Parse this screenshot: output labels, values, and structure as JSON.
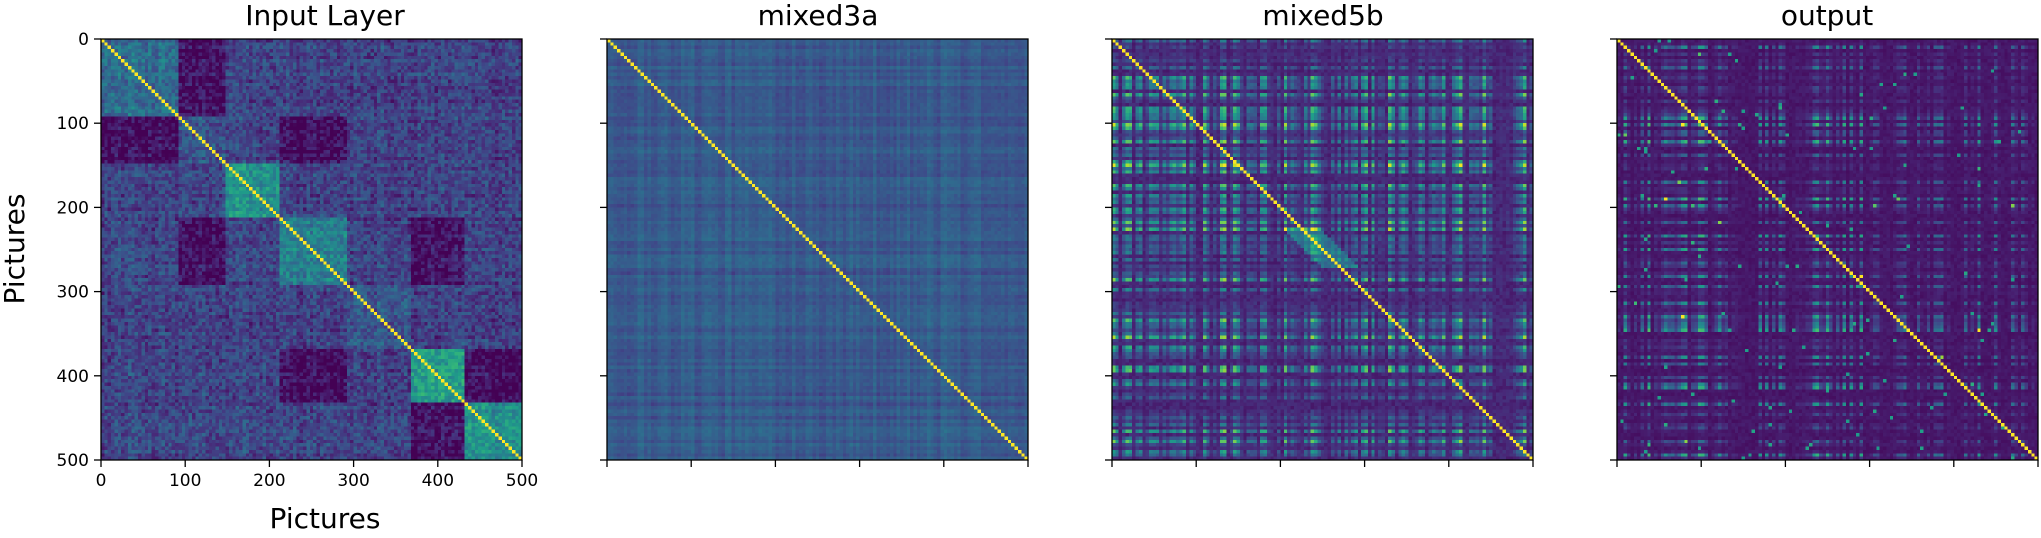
{
  "chart_data": [
    {
      "type": "heatmap",
      "title": "Input Layer",
      "xlabel": "Pictures",
      "ylabel": "Pictures",
      "xlim": [
        0,
        500
      ],
      "ylim": [
        0,
        500
      ],
      "xticks": [
        0,
        100,
        200,
        300,
        400,
        500
      ],
      "yticks": [
        0,
        100,
        200,
        300,
        400,
        500
      ],
      "xtick_labels": [
        "0",
        "100",
        "200",
        "300",
        "400",
        "500"
      ],
      "ytick_labels": [
        "0",
        "100",
        "200",
        "300",
        "400",
        "500"
      ],
      "colormap": "viridis",
      "diagonal_value": 1.0,
      "blocks": [
        {
          "from": 0,
          "to": 90,
          "level": 0.35
        },
        {
          "from": 90,
          "to": 145,
          "level": 0.25
        },
        {
          "from": 145,
          "to": 210,
          "level": 0.5
        },
        {
          "from": 210,
          "to": 290,
          "level": 0.42
        },
        {
          "from": 290,
          "to": 365,
          "level": 0.28
        },
        {
          "from": 365,
          "to": 432,
          "level": 0.55
        },
        {
          "from": 432,
          "to": 500,
          "level": 0.5
        }
      ],
      "dark_blocks": [
        {
          "rows": [
            0,
            90
          ],
          "cols": [
            90,
            145
          ]
        },
        {
          "rows": [
            90,
            145
          ],
          "cols": [
            0,
            90
          ]
        },
        {
          "rows": [
            90,
            145
          ],
          "cols": [
            210,
            290
          ]
        },
        {
          "rows": [
            210,
            290
          ],
          "cols": [
            90,
            145
          ]
        },
        {
          "rows": [
            210,
            290
          ],
          "cols": [
            365,
            432
          ]
        },
        {
          "rows": [
            365,
            432
          ],
          "cols": [
            210,
            290
          ]
        },
        {
          "rows": [
            365,
            432
          ],
          "cols": [
            432,
            500
          ]
        },
        {
          "rows": [
            432,
            500
          ],
          "cols": [
            365,
            432
          ]
        }
      ]
    },
    {
      "type": "heatmap",
      "title": "mixed3a",
      "xlim": [
        0,
        500
      ],
      "ylim": [
        0,
        500
      ],
      "xticks": [
        0,
        100,
        200,
        300,
        400,
        500
      ],
      "yticks": [
        0,
        100,
        200,
        300,
        400,
        500
      ],
      "colormap": "viridis",
      "diagonal_value": 1.0,
      "base_level": 0.28
    },
    {
      "type": "heatmap",
      "title": "mixed5b",
      "xlim": [
        0,
        500
      ],
      "ylim": [
        0,
        500
      ],
      "xticks": [
        0,
        100,
        200,
        300,
        400,
        500
      ],
      "yticks": [
        0,
        100,
        200,
        300,
        400,
        500
      ],
      "colormap": "viridis",
      "diagonal_value": 1.0,
      "base_level": 0.1
    },
    {
      "type": "heatmap",
      "title": "output",
      "xlim": [
        0,
        500
      ],
      "ylim": [
        0,
        500
      ],
      "xticks": [
        0,
        100,
        200,
        300,
        400,
        500
      ],
      "yticks": [
        0,
        100,
        200,
        300,
        400,
        500
      ],
      "colormap": "viridis",
      "diagonal_value": 1.0,
      "base_level": 0.06
    }
  ]
}
